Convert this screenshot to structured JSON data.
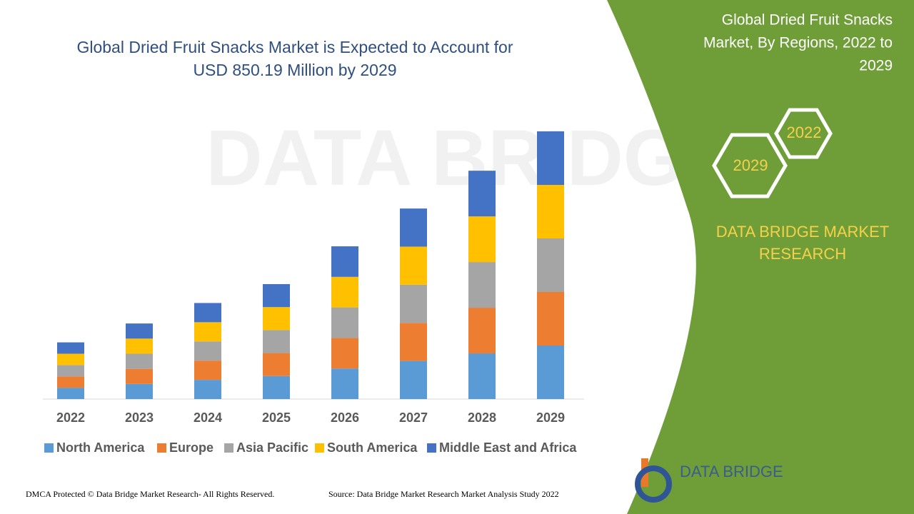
{
  "chart_data": {
    "type": "stacked_bar",
    "title": [
      "Global Dried Fruit Snacks Market is Expected to Account for",
      "USD 850.19 Million by 2029"
    ],
    "categories": [
      "2022",
      "2023",
      "2024",
      "2025",
      "2026",
      "2027",
      "2028",
      "2029"
    ],
    "series": [
      {
        "name": "North America",
        "color": "#5b9bd5",
        "values": [
          36,
          48,
          61,
          73,
          97,
          121,
          145,
          170
        ]
      },
      {
        "name": "Europe",
        "color": "#ed7d31",
        "values": [
          36,
          48,
          61,
          73,
          97,
          121,
          145,
          170
        ]
      },
      {
        "name": "Asia Pacific",
        "color": "#a5a5a5",
        "values": [
          36,
          48,
          61,
          73,
          97,
          121,
          145,
          170
        ]
      },
      {
        "name": "South America",
        "color": "#ffc000",
        "values": [
          36,
          48,
          61,
          73,
          97,
          121,
          145,
          170
        ]
      },
      {
        "name": "Middle East and Africa",
        "color": "#4472c4",
        "values": [
          36,
          48,
          61,
          73,
          97,
          121,
          145,
          170
        ]
      }
    ]
  },
  "side_panel": {
    "title": [
      "Global Dried Fruit Snacks",
      "Market, By Regions, 2022 to",
      "2029"
    ],
    "hex_labels": [
      "2022",
      "2029"
    ],
    "brand": [
      "DATA BRIDGE MARKET",
      "RESEARCH"
    ],
    "logo": "DATA BRIDGE"
  },
  "footer": {
    "left": "DMCA Protected © Data Bridge Market Research- All Rights Reserved.",
    "right": "Source: Data Bridge Market Research Market Analysis Study 2022"
  }
}
